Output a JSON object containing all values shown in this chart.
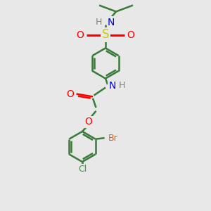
{
  "bg_color": "#e8e8e8",
  "bond_color": "#3a7a3a",
  "bond_width": 1.8,
  "atom_colors": {
    "C": "#3a7a3a",
    "H": "#808080",
    "N": "#0000ee",
    "O": "#ff0000",
    "S": "#cccc00",
    "Br": "#cc6622",
    "Cl": "#22aa22"
  },
  "font_size": 8,
  "fig_size": [
    3.0,
    3.0
  ],
  "dpi": 100
}
